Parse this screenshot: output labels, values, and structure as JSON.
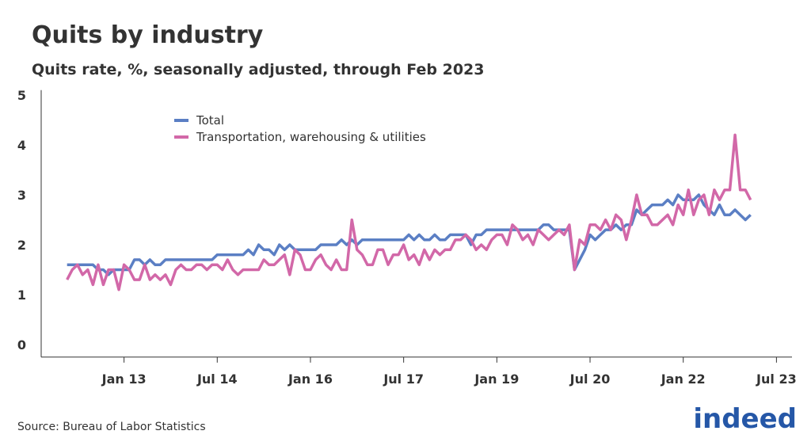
{
  "chart_data": {
    "type": "line",
    "title": "Quits by industry",
    "subtitle": "Quits rate, %, seasonally adjusted, through Feb 2023",
    "source": "Source: Bureau of Labor Statistics",
    "logo": "indeed",
    "x": [
      "2012-02",
      "2012-03",
      "2012-04",
      "2012-05",
      "2012-06",
      "2012-07",
      "2012-08",
      "2012-09",
      "2012-10",
      "2012-11",
      "2012-12",
      "2013-01",
      "2013-02",
      "2013-03",
      "2013-04",
      "2013-05",
      "2013-06",
      "2013-07",
      "2013-08",
      "2013-09",
      "2013-10",
      "2013-11",
      "2013-12",
      "2014-01",
      "2014-02",
      "2014-03",
      "2014-04",
      "2014-05",
      "2014-06",
      "2014-07",
      "2014-08",
      "2014-09",
      "2014-10",
      "2014-11",
      "2014-12",
      "2015-01",
      "2015-02",
      "2015-03",
      "2015-04",
      "2015-05",
      "2015-06",
      "2015-07",
      "2015-08",
      "2015-09",
      "2015-10",
      "2015-11",
      "2015-12",
      "2016-01",
      "2016-02",
      "2016-03",
      "2016-04",
      "2016-05",
      "2016-06",
      "2016-07",
      "2016-08",
      "2016-09",
      "2016-10",
      "2016-11",
      "2016-12",
      "2017-01",
      "2017-02",
      "2017-03",
      "2017-04",
      "2017-05",
      "2017-06",
      "2017-07",
      "2017-08",
      "2017-09",
      "2017-10",
      "2017-11",
      "2017-12",
      "2018-01",
      "2018-02",
      "2018-03",
      "2018-04",
      "2018-05",
      "2018-06",
      "2018-07",
      "2018-08",
      "2018-09",
      "2018-10",
      "2018-11",
      "2018-12",
      "2019-01",
      "2019-02",
      "2019-03",
      "2019-04",
      "2019-05",
      "2019-06",
      "2019-07",
      "2019-08",
      "2019-09",
      "2019-10",
      "2019-11",
      "2019-12",
      "2020-01",
      "2020-02",
      "2020-03",
      "2020-04",
      "2020-05",
      "2020-06",
      "2020-07",
      "2020-08",
      "2020-09",
      "2020-10",
      "2020-11",
      "2020-12",
      "2021-01",
      "2021-02",
      "2021-03",
      "2021-04",
      "2021-05",
      "2021-06",
      "2021-07",
      "2021-08",
      "2021-09",
      "2021-10",
      "2021-11",
      "2021-12",
      "2022-01",
      "2022-02",
      "2022-03",
      "2022-04",
      "2022-05",
      "2022-06",
      "2022-07",
      "2022-08",
      "2022-09",
      "2022-10",
      "2022-11",
      "2022-12",
      "2023-01",
      "2023-02"
    ],
    "series": [
      {
        "name": "Total",
        "color": "#5b7fc4",
        "values": [
          1.6,
          1.6,
          1.6,
          1.6,
          1.6,
          1.6,
          1.5,
          1.5,
          1.4,
          1.5,
          1.5,
          1.5,
          1.5,
          1.7,
          1.7,
          1.6,
          1.7,
          1.6,
          1.6,
          1.7,
          1.7,
          1.7,
          1.7,
          1.7,
          1.7,
          1.7,
          1.7,
          1.7,
          1.7,
          1.8,
          1.8,
          1.8,
          1.8,
          1.8,
          1.8,
          1.9,
          1.8,
          2.0,
          1.9,
          1.9,
          1.8,
          2.0,
          1.9,
          2.0,
          1.9,
          1.9,
          1.9,
          1.9,
          1.9,
          2.0,
          2.0,
          2.0,
          2.0,
          2.1,
          2.0,
          2.1,
          2.0,
          2.1,
          2.1,
          2.1,
          2.1,
          2.1,
          2.1,
          2.1,
          2.1,
          2.1,
          2.2,
          2.1,
          2.2,
          2.1,
          2.1,
          2.2,
          2.1,
          2.1,
          2.2,
          2.2,
          2.2,
          2.2,
          2.0,
          2.2,
          2.2,
          2.3,
          2.3,
          2.3,
          2.3,
          2.3,
          2.3,
          2.3,
          2.3,
          2.3,
          2.3,
          2.3,
          2.4,
          2.4,
          2.3,
          2.3,
          2.3,
          2.3,
          1.5,
          1.7,
          1.9,
          2.2,
          2.1,
          2.2,
          2.3,
          2.3,
          2.4,
          2.3,
          2.4,
          2.4,
          2.7,
          2.6,
          2.7,
          2.8,
          2.8,
          2.8,
          2.9,
          2.8,
          3.0,
          2.9,
          2.9,
          2.9,
          3.0,
          2.8,
          2.7,
          2.6,
          2.8,
          2.6,
          2.6,
          2.7,
          2.6,
          2.5,
          2.6
        ]
      },
      {
        "name": "Transportation, warehousing & utilities",
        "color": "#d268a8",
        "values": [
          1.3,
          1.5,
          1.6,
          1.4,
          1.5,
          1.2,
          1.6,
          1.2,
          1.5,
          1.5,
          1.1,
          1.6,
          1.5,
          1.3,
          1.3,
          1.6,
          1.3,
          1.4,
          1.3,
          1.4,
          1.2,
          1.5,
          1.6,
          1.5,
          1.5,
          1.6,
          1.6,
          1.5,
          1.6,
          1.6,
          1.5,
          1.7,
          1.5,
          1.4,
          1.5,
          1.5,
          1.5,
          1.5,
          1.7,
          1.6,
          1.6,
          1.7,
          1.8,
          1.4,
          1.9,
          1.8,
          1.5,
          1.5,
          1.7,
          1.8,
          1.6,
          1.5,
          1.7,
          1.5,
          1.5,
          2.5,
          1.9,
          1.8,
          1.6,
          1.6,
          1.9,
          1.9,
          1.6,
          1.8,
          1.8,
          2.0,
          1.7,
          1.8,
          1.6,
          1.9,
          1.7,
          1.9,
          1.8,
          1.9,
          1.9,
          2.1,
          2.1,
          2.2,
          2.1,
          1.9,
          2.0,
          1.9,
          2.1,
          2.2,
          2.2,
          2.0,
          2.4,
          2.3,
          2.1,
          2.2,
          2.0,
          2.3,
          2.2,
          2.1,
          2.2,
          2.3,
          2.2,
          2.4,
          1.5,
          2.1,
          2.0,
          2.4,
          2.4,
          2.3,
          2.5,
          2.3,
          2.6,
          2.5,
          2.1,
          2.5,
          3.0,
          2.6,
          2.6,
          2.4,
          2.4,
          2.5,
          2.6,
          2.4,
          2.8,
          2.6,
          3.1,
          2.6,
          2.9,
          3.0,
          2.6,
          3.1,
          2.9,
          3.1,
          3.1,
          4.2,
          3.1,
          3.1,
          2.9
        ]
      }
    ],
    "xlim": [
      "2011-09",
      "2023-10"
    ],
    "xticks": [
      {
        "value": "2013-01",
        "label": "Jan 13"
      },
      {
        "value": "2014-07",
        "label": "Jul 14"
      },
      {
        "value": "2016-01",
        "label": "Jan 16"
      },
      {
        "value": "2017-07",
        "label": "Jul 17"
      },
      {
        "value": "2019-01",
        "label": "Jan 19"
      },
      {
        "value": "2020-07",
        "label": "Jul 20"
      },
      {
        "value": "2022-01",
        "label": "Jan 22"
      },
      {
        "value": "2023-07",
        "label": "Jul 23"
      }
    ],
    "ylim": [
      -0.25,
      5.1
    ],
    "yticks": [
      0,
      1,
      2,
      3,
      4,
      5
    ],
    "grid": false
  }
}
